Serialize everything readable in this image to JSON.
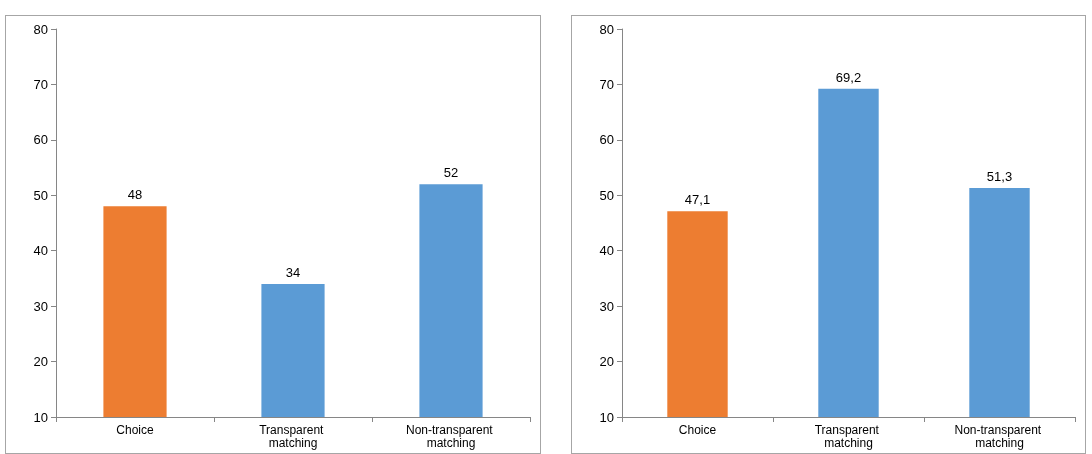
{
  "chart_data": [
    {
      "type": "bar",
      "categories": [
        "Choice",
        "Transparent matching",
        "Non-transparent matching"
      ],
      "values": [
        48,
        34,
        52
      ],
      "colors": [
        "#ed7d31",
        "#5b9bd5",
        "#5b9bd5"
      ],
      "value_labels": [
        "48",
        "34",
        "52"
      ],
      "ylim": [
        10,
        80
      ],
      "yticks": [
        10,
        20,
        30,
        40,
        50,
        60,
        70,
        80
      ],
      "grid": false
    },
    {
      "type": "bar",
      "categories": [
        "Choice",
        "Transparent matching",
        "Non-transparent matching"
      ],
      "values": [
        47.1,
        69.2,
        51.3
      ],
      "colors": [
        "#ed7d31",
        "#5b9bd5",
        "#5b9bd5"
      ],
      "value_labels": [
        "47,1",
        "69,2",
        "51,3"
      ],
      "ylim": [
        10,
        80
      ],
      "yticks": [
        10,
        20,
        30,
        40,
        50,
        60,
        70,
        80
      ],
      "grid": false
    }
  ]
}
